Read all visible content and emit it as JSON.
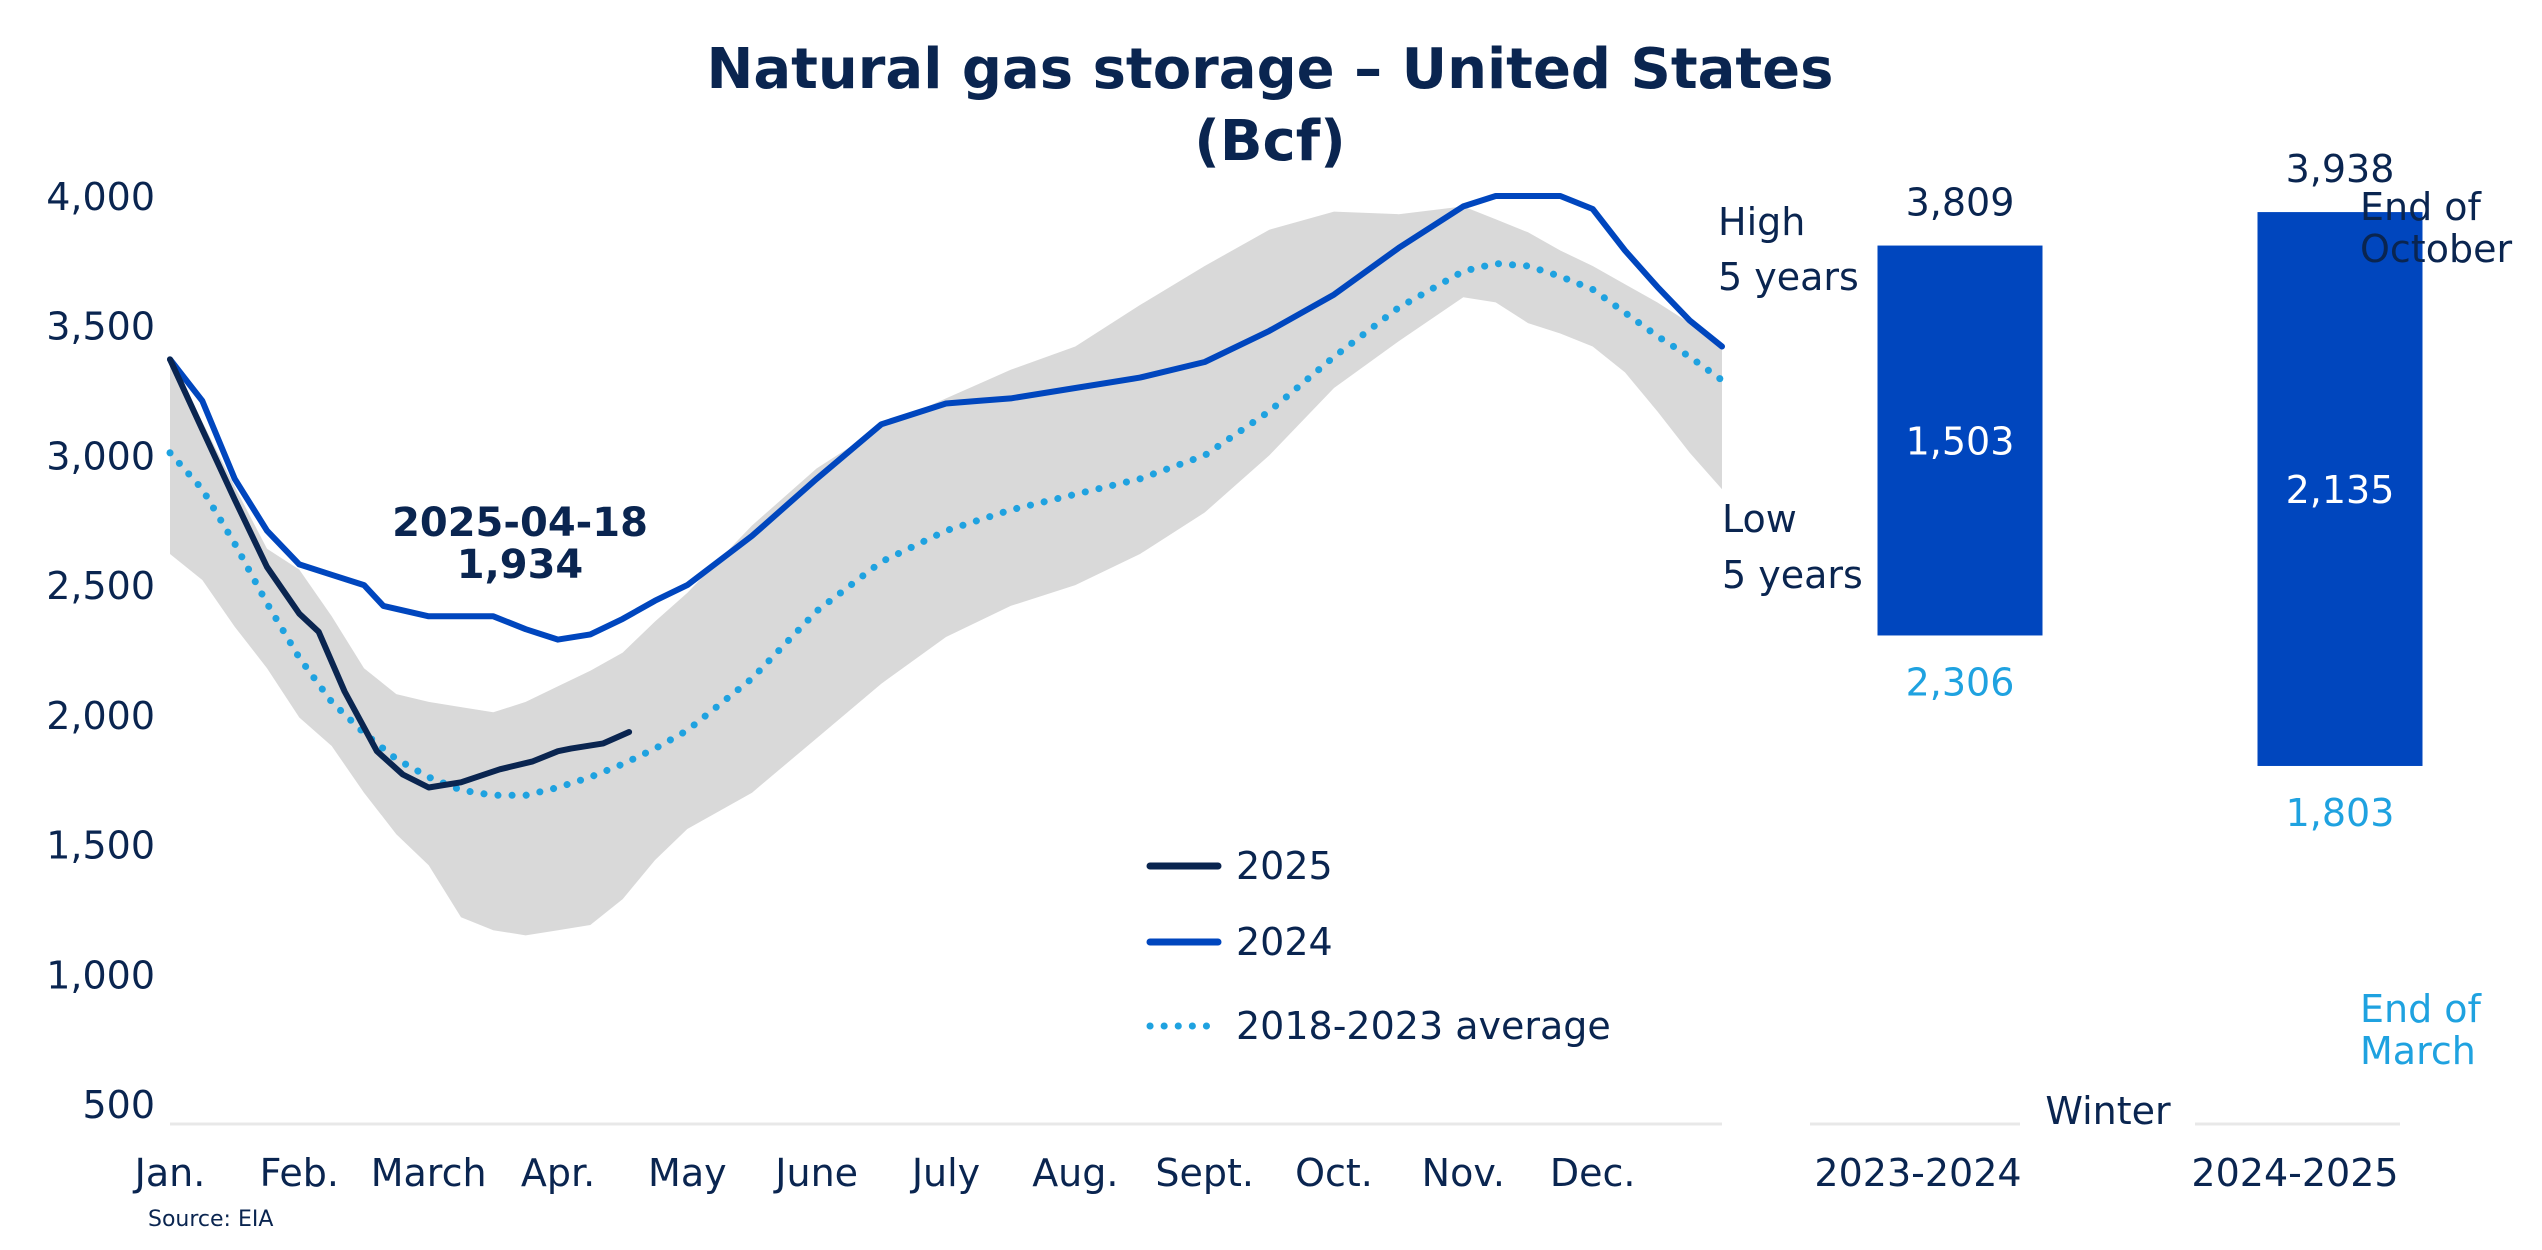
{
  "chart_data": [
    {
      "type": "line",
      "title": "Natural gas storage – United States",
      "subtitle": "(Bcf)",
      "ylim": [
        500,
        4000
      ],
      "y_ticks": [
        "4,000",
        "3,500",
        "3,000",
        "2,500",
        "2,000",
        "1,500",
        "1,000",
        "500"
      ],
      "months": [
        "Jan.",
        "Feb.",
        "March",
        "Apr.",
        "May",
        "June",
        "July",
        "Aug.",
        "Sept.",
        "Oct.",
        "Nov.",
        "Dec."
      ],
      "grid": false,
      "legend_position": "bottom-right",
      "annotation": {
        "date": "2025-04-18",
        "value": "1,934",
        "x": 3.55,
        "y": 1934
      },
      "band": {
        "name": "5-year range",
        "x": [
          0,
          0.25,
          0.5,
          0.75,
          1.0,
          1.25,
          1.5,
          1.75,
          2.0,
          2.25,
          2.5,
          2.75,
          3.0,
          3.25,
          3.5,
          3.75,
          4.0,
          4.5,
          5.0,
          5.5,
          6.0,
          6.5,
          7.0,
          7.5,
          8.0,
          8.5,
          9.0,
          9.5,
          10.0,
          10.25,
          10.5,
          10.75,
          11.0,
          11.25,
          11.5,
          11.75,
          12.0
        ],
        "high": [
          3370,
          3130,
          2880,
          2640,
          2560,
          2380,
          2180,
          2080,
          2050,
          2030,
          2010,
          2050,
          2110,
          2170,
          2240,
          2360,
          2470,
          2730,
          2950,
          3110,
          3220,
          3330,
          3420,
          3580,
          3730,
          3870,
          3940,
          3930,
          3960,
          3910,
          3860,
          3790,
          3730,
          3660,
          3590,
          3510,
          3430
        ],
        "low": [
          2620,
          2520,
          2340,
          2180,
          1990,
          1880,
          1700,
          1540,
          1420,
          1220,
          1170,
          1150,
          1170,
          1190,
          1290,
          1440,
          1560,
          1700,
          1910,
          2120,
          2300,
          2420,
          2500,
          2620,
          2780,
          3000,
          3260,
          3440,
          3610,
          3590,
          3510,
          3470,
          3420,
          3320,
          3170,
          3010,
          2870
        ]
      },
      "series": [
        {
          "name": "2025",
          "color": "#0a2550",
          "style": "solid",
          "x": [
            0,
            0.25,
            0.5,
            0.75,
            1.0,
            1.15,
            1.35,
            1.6,
            1.8,
            2.0,
            2.25,
            2.55,
            2.8,
            3.0,
            3.1,
            3.35,
            3.55
          ],
          "y": [
            3370,
            3100,
            2830,
            2570,
            2390,
            2320,
            2090,
            1860,
            1770,
            1720,
            1740,
            1790,
            1820,
            1860,
            1870,
            1890,
            1934
          ]
        },
        {
          "name": "2024",
          "color": "#0046be",
          "style": "solid",
          "x": [
            0,
            0.25,
            0.5,
            0.75,
            1.0,
            1.25,
            1.5,
            1.65,
            2.0,
            2.25,
            2.5,
            2.75,
            3.0,
            3.25,
            3.5,
            3.75,
            4.0,
            4.5,
            5.0,
            5.5,
            6.0,
            6.25,
            6.5,
            7.0,
            7.5,
            8.0,
            8.5,
            9.0,
            9.5,
            10.0,
            10.25,
            10.5,
            10.75,
            11.0,
            11.25,
            11.5,
            11.75,
            12.0
          ],
          "y": [
            3370,
            3210,
            2910,
            2710,
            2580,
            2540,
            2500,
            2420,
            2380,
            2380,
            2380,
            2330,
            2290,
            2310,
            2370,
            2440,
            2500,
            2690,
            2910,
            3120,
            3200,
            3210,
            3220,
            3260,
            3300,
            3360,
            3480,
            3620,
            3800,
            3960,
            4000,
            4000,
            4000,
            3950,
            3790,
            3650,
            3520,
            3420
          ]
        },
        {
          "name": "2018-2023 average",
          "color": "#1fa2e0",
          "style": "dotted",
          "x": [
            0,
            0.25,
            0.5,
            0.75,
            1.0,
            1.25,
            1.5,
            1.75,
            2.0,
            2.25,
            2.5,
            2.75,
            3.0,
            3.25,
            3.5,
            3.75,
            4.0,
            4.5,
            5.0,
            5.5,
            6.0,
            6.5,
            7.0,
            7.5,
            8.0,
            8.5,
            9.0,
            9.5,
            10.0,
            10.25,
            10.5,
            10.75,
            11.0,
            11.25,
            11.5,
            11.75,
            12.0
          ],
          "y": [
            3010,
            2870,
            2660,
            2430,
            2220,
            2050,
            1930,
            1830,
            1760,
            1710,
            1690,
            1690,
            1720,
            1760,
            1810,
            1870,
            1940,
            2140,
            2400,
            2590,
            2710,
            2790,
            2850,
            2910,
            3000,
            3170,
            3380,
            3570,
            3710,
            3740,
            3730,
            3690,
            3640,
            3550,
            3460,
            3380,
            3290
          ]
        }
      ]
    },
    {
      "type": "bar",
      "title": "",
      "xlabel": "Winter",
      "categories": [
        "2023-2024",
        "2024-2025"
      ],
      "ylim": [
        500,
        4000
      ],
      "color": "#0046be",
      "end_of_october": [
        3809,
        3938
      ],
      "end_of_march": [
        2306,
        1803
      ],
      "withdrawal": [
        1503,
        2135
      ],
      "labels": {
        "end_of_october": [
          "3,809",
          "3,938"
        ],
        "end_of_march": [
          "2,306",
          "1,803"
        ],
        "withdrawal": [
          "1,503",
          "2,135"
        ]
      },
      "annotations": {
        "high": [
          "High",
          "5 years"
        ],
        "low": [
          "Low",
          "5 years"
        ],
        "end_of_october": [
          "End of",
          "October"
        ],
        "end_of_march": [
          "End of",
          "March"
        ]
      }
    }
  ],
  "source": "Source: EIA",
  "colors": {
    "navy": "#0a2550",
    "blue": "#0046be",
    "light_blue": "#1fa2e0",
    "band": "#d9d9d9"
  }
}
